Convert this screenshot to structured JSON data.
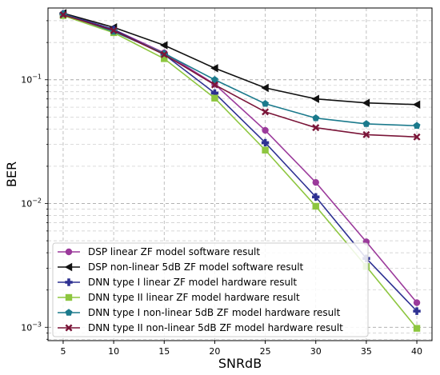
{
  "chart_data": {
    "type": "line",
    "xlabel": "SNRdB",
    "ylabel": "BER",
    "yscale": "log",
    "xlim": [
      3.5,
      41.5
    ],
    "ylim": [
      0.00078,
      0.38
    ],
    "grid": true,
    "legend_position": "lower-left",
    "x": [
      5,
      10,
      15,
      20,
      25,
      30,
      35,
      40
    ],
    "x_tick_labels": [
      "5",
      "10",
      "15",
      "20",
      "25",
      "30",
      "35",
      "40"
    ],
    "y_tick_labels": [
      {
        "value": 0.1,
        "base": "10",
        "exp": "−1"
      },
      {
        "value": 0.01,
        "base": "10",
        "exp": "−2"
      },
      {
        "value": 0.001,
        "base": "10",
        "exp": "−3"
      }
    ],
    "series": [
      {
        "name": "DSP linear ZF model software result",
        "color": "#9b3a9b",
        "marker": "circle",
        "values": [
          0.34,
          0.255,
          0.165,
          0.092,
          0.039,
          0.0148,
          0.0049,
          0.00158
        ]
      },
      {
        "name": "DSP non-linear 5dB ZF model software result",
        "color": "#111111",
        "marker": "triangle-left",
        "values": [
          0.345,
          0.265,
          0.19,
          0.124,
          0.086,
          0.07,
          0.065,
          0.063
        ]
      },
      {
        "name": "DNN type I linear ZF model hardware result",
        "color": "#2e3192",
        "marker": "plus",
        "values": [
          0.34,
          0.255,
          0.16,
          0.078,
          0.031,
          0.0113,
          0.0036,
          0.00135
        ]
      },
      {
        "name": "DNN type II linear ZF model hardware result",
        "color": "#8dc63f",
        "marker": "square",
        "values": [
          0.33,
          0.24,
          0.148,
          0.071,
          0.027,
          0.0095,
          0.0031,
          0.00098
        ]
      },
      {
        "name": "DNN type I non-linear 5dB ZF model hardware result",
        "color": "#1b7a8c",
        "marker": "pentagon",
        "values": [
          0.34,
          0.245,
          0.163,
          0.1,
          0.064,
          0.049,
          0.044,
          0.0425
        ]
      },
      {
        "name": "DNN type II non-linear 5dB ZF model hardware result",
        "color": "#7a1538",
        "marker": "x",
        "values": [
          0.335,
          0.25,
          0.16,
          0.091,
          0.055,
          0.041,
          0.036,
          0.0345
        ]
      }
    ]
  }
}
